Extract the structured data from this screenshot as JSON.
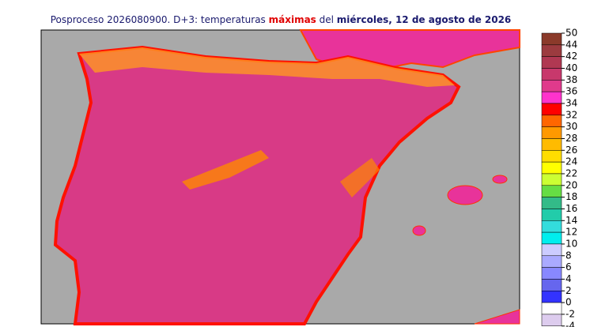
{
  "header": {
    "title_parts": [
      {
        "text": "Posproceso 2026080900. D+3: temperaturas ",
        "color": "#1a1a6e",
        "bold": false
      },
      {
        "text": "máximas",
        "color": "#e00000",
        "bold": true
      },
      {
        "text": " del ",
        "color": "#1a1a6e",
        "bold": false
      },
      {
        "text": "miércoles, 12 de agosto de 2026",
        "color": "#1a1a6e",
        "bold": true
      }
    ]
  },
  "legend": {
    "ticks": [
      50,
      44,
      42,
      40,
      38,
      36,
      34,
      32,
      30,
      28,
      26,
      24,
      22,
      20,
      18,
      16,
      14,
      12,
      10,
      8,
      6,
      4,
      2,
      0,
      -2,
      -4
    ],
    "colors": [
      "#8b3a2a",
      "#9c3b3f",
      "#b03852",
      "#c8386c",
      "#e03a8c",
      "#ff33cc",
      "#ff0000",
      "#ff6600",
      "#ff9900",
      "#ffbb00",
      "#ffdd00",
      "#ffff00",
      "#ccff33",
      "#66dd44",
      "#33bb88",
      "#22ccaa",
      "#33dddd",
      "#00eeee",
      "#ccccff",
      "#aaaaff",
      "#8888ff",
      "#6666ee",
      "#3333ff",
      "#ffffff",
      "#ddccee"
    ]
  }
}
